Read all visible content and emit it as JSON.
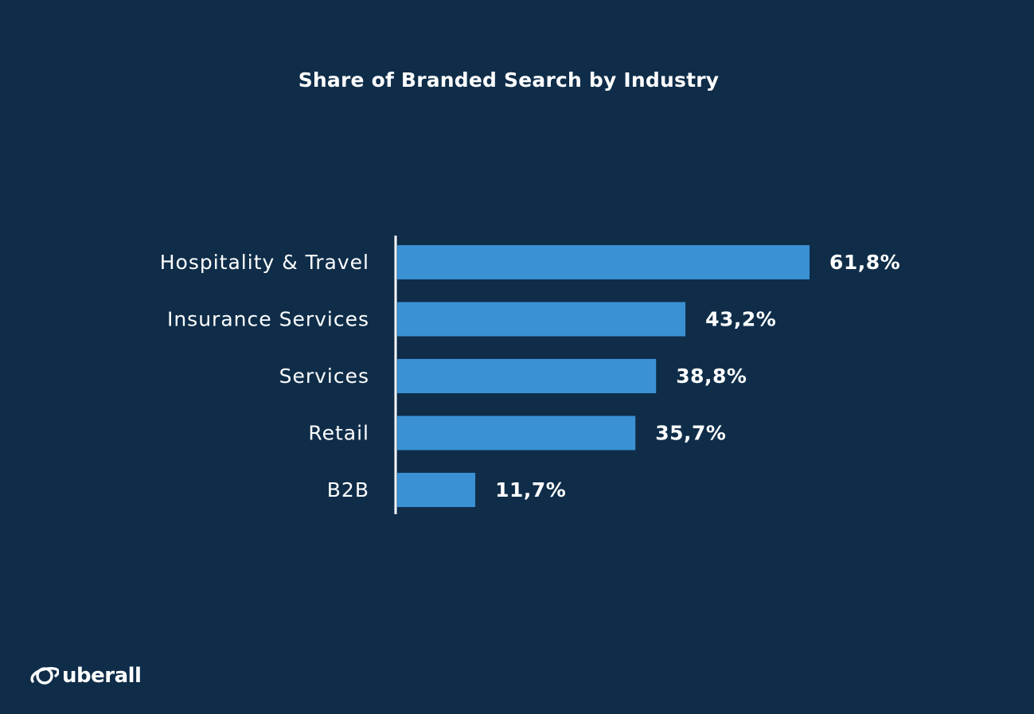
{
  "chart_data": {
    "type": "bar",
    "orientation": "horizontal",
    "title": "Share of Branded Search by Industry",
    "categories": [
      "Hospitality & Travel",
      "Insurance Services",
      "Services",
      "Retail",
      "B2B"
    ],
    "values": [
      61.8,
      43.2,
      38.8,
      35.7,
      11.7
    ],
    "value_labels": [
      "61,8%",
      "43,2%",
      "38,8%",
      "35,7%",
      "11,7%"
    ],
    "xlim": [
      0,
      61.8
    ],
    "grid": false,
    "legend": "none",
    "colors": {
      "bar": "#3a91d4",
      "background": "#0f2d49",
      "text": "#ffffff",
      "axis": "#ffffff"
    }
  },
  "brand": {
    "logo_text": "uberall",
    "icon": "planet-icon"
  }
}
